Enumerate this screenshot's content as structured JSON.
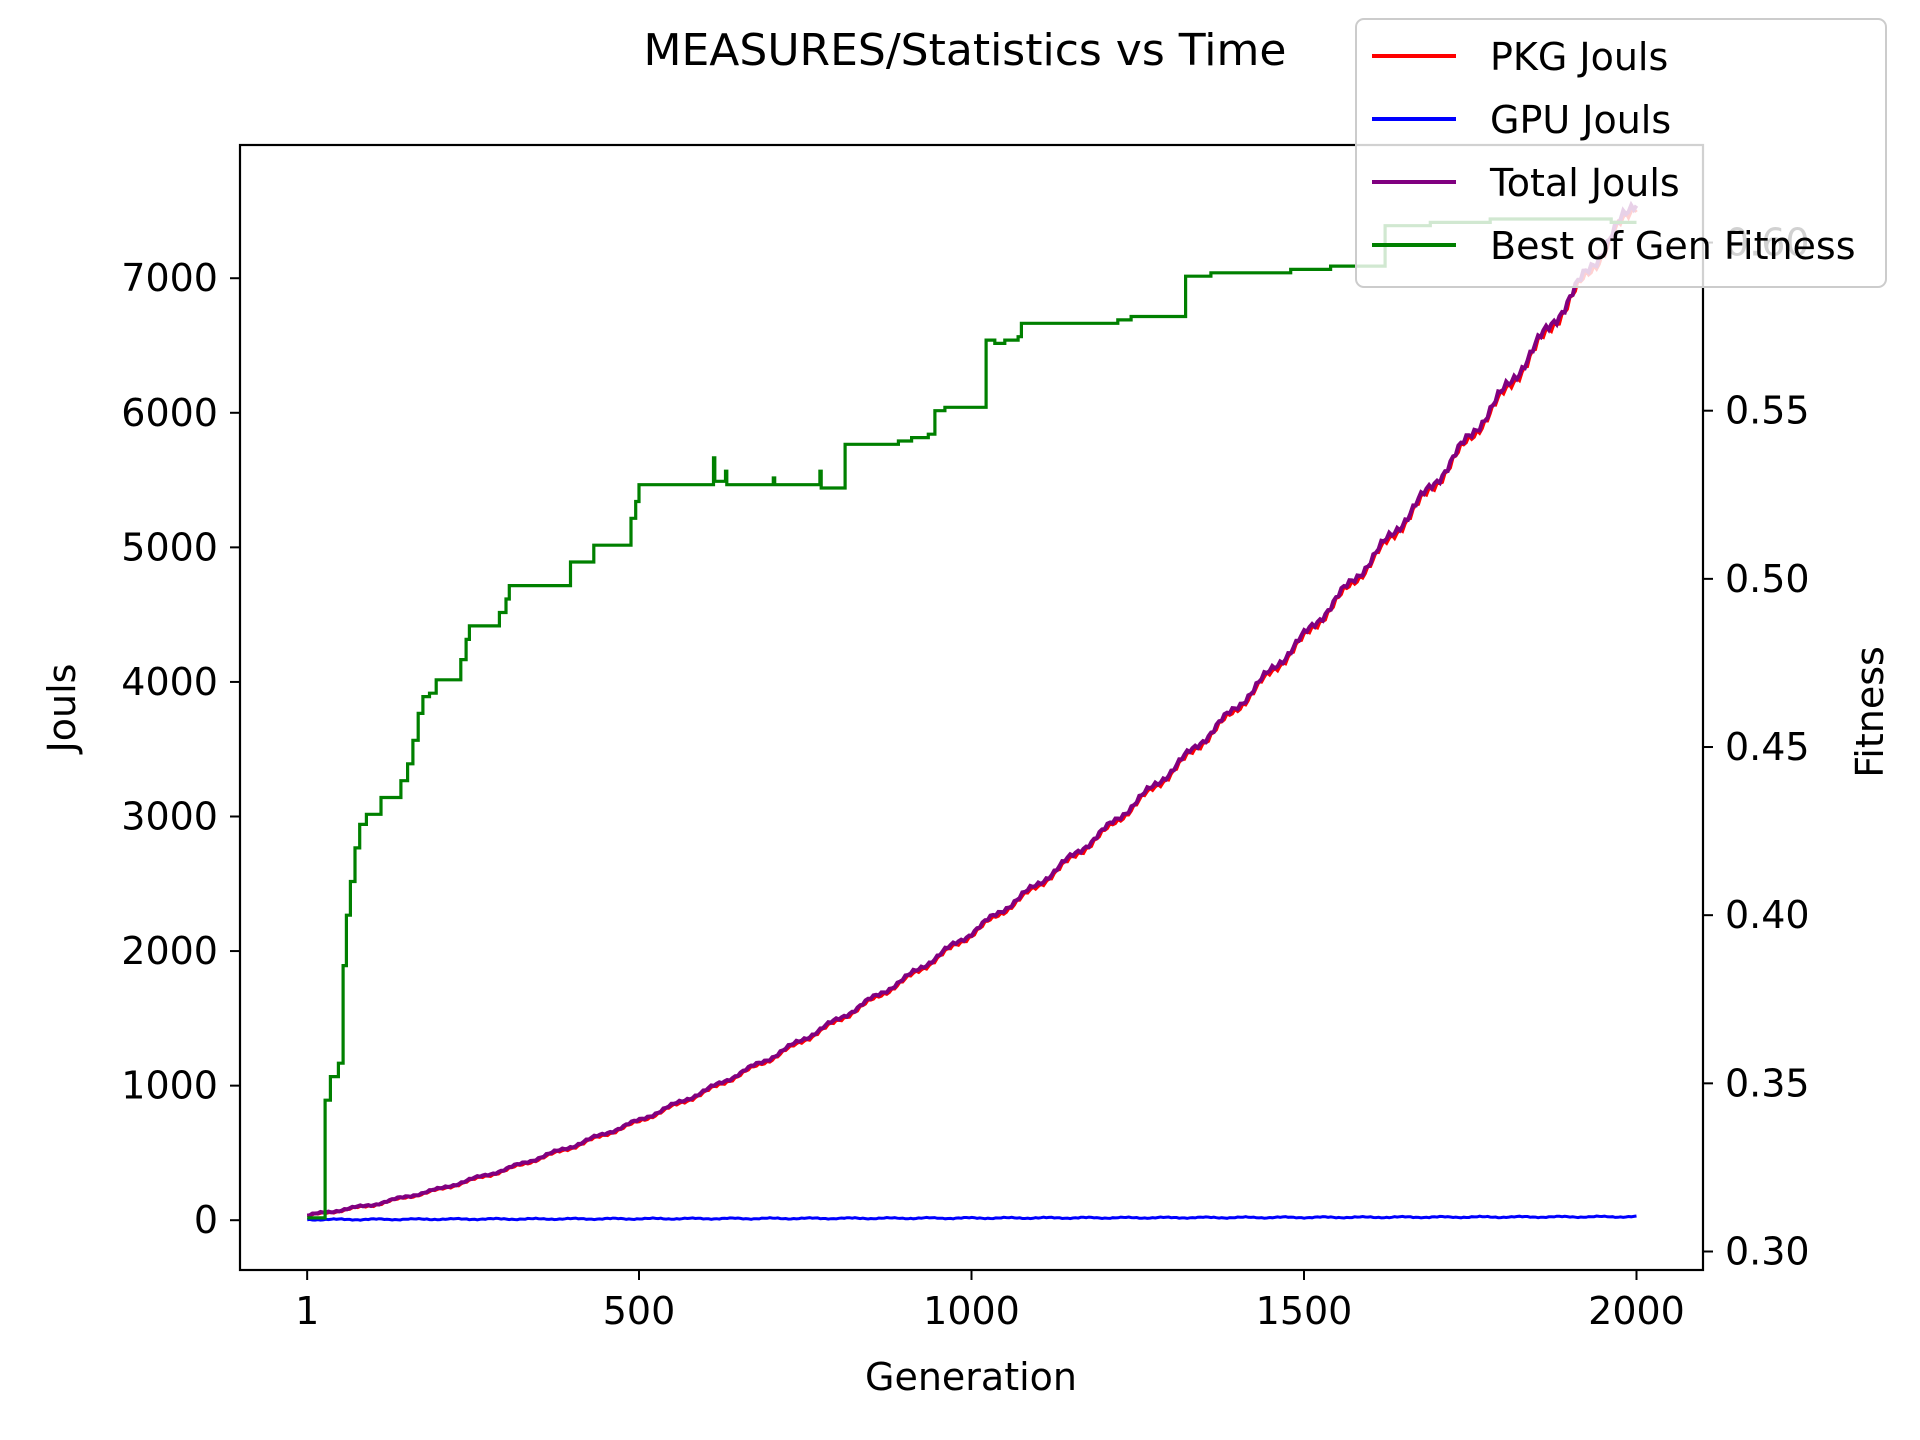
{
  "chart_data": {
    "type": "line",
    "title": "MEASURES/Statistics vs Time",
    "xlabel": "Generation",
    "ylabel_left": "Jouls",
    "ylabel_right": "Fitness",
    "xlim": [
      -100,
      2100
    ],
    "ylim_left": [
      -370,
      7990
    ],
    "ylim_right": [
      0.2945,
      0.629
    ],
    "x_ticks": [
      1,
      500,
      1000,
      1500,
      2000
    ],
    "y_left_ticks": [
      0,
      1000,
      2000,
      3000,
      4000,
      5000,
      6000,
      7000
    ],
    "y_right_ticks": [
      "0.30",
      "0.35",
      "0.40",
      "0.45",
      "0.50",
      "0.55",
      "0.60"
    ],
    "grid": false,
    "legend_position": "top-right",
    "series": [
      {
        "name": "PKG Jouls",
        "axis": "left",
        "color": "#ff0000",
        "x": [
          1,
          100,
          200,
          300,
          400,
          500,
          600,
          700,
          800,
          900,
          1000,
          1100,
          1200,
          1300,
          1400,
          1500,
          1600,
          1700,
          1800,
          1900,
          2000
        ],
        "y": [
          30,
          110,
          225,
          370,
          540,
          730,
          950,
          1200,
          1480,
          1780,
          2120,
          2480,
          2880,
          3320,
          3800,
          4320,
          4880,
          5480,
          6130,
          6830,
          7560
        ]
      },
      {
        "name": "GPU Jouls",
        "axis": "left",
        "color": "#0000ff",
        "x": [
          1,
          100,
          200,
          300,
          400,
          500,
          600,
          700,
          800,
          900,
          1000,
          1100,
          1200,
          1300,
          1400,
          1500,
          1600,
          1700,
          1800,
          1900,
          2000
        ],
        "y": [
          5,
          6,
          8,
          9,
          10,
          11,
          12,
          13,
          14,
          15,
          16,
          17,
          18,
          19,
          20,
          21,
          22,
          23,
          24,
          25,
          26
        ]
      },
      {
        "name": "Total Jouls",
        "axis": "left",
        "color": "#800080",
        "x": [
          1,
          100,
          200,
          300,
          400,
          500,
          600,
          700,
          800,
          900,
          1000,
          1100,
          1200,
          1300,
          1400,
          1500,
          1600,
          1700,
          1800,
          1900,
          2000
        ],
        "y": [
          35,
          116,
          233,
          380,
          551,
          742,
          963,
          1214,
          1495,
          1796,
          2137,
          2498,
          2899,
          3340,
          3821,
          4342,
          4903,
          5504,
          6155,
          6856,
          7586
        ]
      },
      {
        "name": "Best of Gen Fitness",
        "axis": "right",
        "color": "#008000",
        "steps": [
          [
            1,
            0.31
          ],
          [
            25,
            0.31
          ],
          [
            28,
            0.345
          ],
          [
            36,
            0.352
          ],
          [
            48,
            0.356
          ],
          [
            55,
            0.385
          ],
          [
            60,
            0.4
          ],
          [
            66,
            0.41
          ],
          [
            73,
            0.42
          ],
          [
            80,
            0.427
          ],
          [
            90,
            0.43
          ],
          [
            110,
            0.43
          ],
          [
            112,
            0.435
          ],
          [
            135,
            0.435
          ],
          [
            142,
            0.44
          ],
          [
            152,
            0.445
          ],
          [
            160,
            0.452
          ],
          [
            168,
            0.46
          ],
          [
            175,
            0.465
          ],
          [
            185,
            0.466
          ],
          [
            195,
            0.47
          ],
          [
            230,
            0.47
          ],
          [
            232,
            0.476
          ],
          [
            240,
            0.482
          ],
          [
            245,
            0.486
          ],
          [
            280,
            0.486
          ],
          [
            290,
            0.49
          ],
          [
            300,
            0.494
          ],
          [
            305,
            0.498
          ],
          [
            355,
            0.498
          ],
          [
            395,
            0.498
          ],
          [
            397,
            0.505
          ],
          [
            425,
            0.505
          ],
          [
            432,
            0.51
          ],
          [
            480,
            0.51
          ],
          [
            488,
            0.518
          ],
          [
            495,
            0.523
          ],
          [
            500,
            0.528
          ],
          [
            610,
            0.528
          ],
          [
            612,
            0.536
          ],
          [
            614,
            0.529
          ],
          [
            628,
            0.529
          ],
          [
            630,
            0.532
          ],
          [
            632,
            0.528
          ],
          [
            700,
            0.528
          ],
          [
            702,
            0.53
          ],
          [
            704,
            0.528
          ],
          [
            770,
            0.528
          ],
          [
            772,
            0.532
          ],
          [
            774,
            0.527
          ],
          [
            808,
            0.527
          ],
          [
            810,
            0.54
          ],
          [
            835,
            0.54
          ],
          [
            890,
            0.541
          ],
          [
            910,
            0.542
          ],
          [
            935,
            0.543
          ],
          [
            945,
            0.55
          ],
          [
            960,
            0.551
          ],
          [
            1020,
            0.551
          ],
          [
            1022,
            0.571
          ],
          [
            1035,
            0.57
          ],
          [
            1050,
            0.571
          ],
          [
            1070,
            0.572
          ],
          [
            1075,
            0.576
          ],
          [
            1140,
            0.576
          ],
          [
            1220,
            0.577
          ],
          [
            1240,
            0.578
          ],
          [
            1320,
            0.578
          ],
          [
            1322,
            0.59
          ],
          [
            1340,
            0.59
          ],
          [
            1360,
            0.591
          ],
          [
            1420,
            0.591
          ],
          [
            1480,
            0.592
          ],
          [
            1540,
            0.593
          ],
          [
            1610,
            0.593
          ],
          [
            1620,
            0.593
          ],
          [
            1622,
            0.605
          ],
          [
            1690,
            0.606
          ],
          [
            1750,
            0.606
          ],
          [
            1780,
            0.607
          ],
          [
            1900,
            0.607
          ],
          [
            1960,
            0.607
          ],
          [
            1962,
            0.606
          ],
          [
            1980,
            0.606
          ],
          [
            2000,
            0.606
          ]
        ]
      }
    ]
  }
}
